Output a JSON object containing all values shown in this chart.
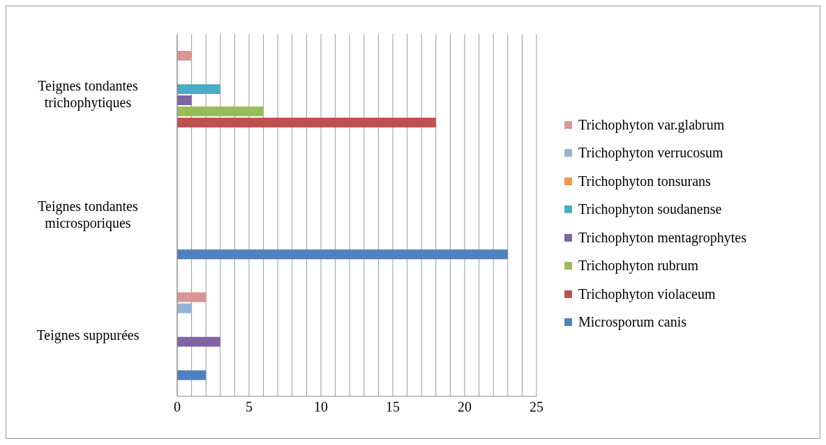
{
  "chart_data": {
    "type": "bar",
    "orientation": "horizontal",
    "categories": [
      "Teignes tondantes trichophytiques",
      "Teignes tondantes microsporiques",
      "Teignes suppurées"
    ],
    "series": [
      {
        "name": "Microsporum canis",
        "color": "#4f81bd",
        "values": [
          0,
          23,
          2
        ]
      },
      {
        "name": "Trichophyton violaceum",
        "color": "#c0504d",
        "values": [
          18,
          0,
          0
        ]
      },
      {
        "name": "Trichophyton rubrum",
        "color": "#9bbb59",
        "values": [
          6,
          0,
          0
        ]
      },
      {
        "name": "Trichophyton mentagrophytes",
        "color": "#8064a2",
        "values": [
          1,
          0,
          3
        ]
      },
      {
        "name": "Trichophyton soudanense",
        "color": "#4bacc6",
        "values": [
          3,
          0,
          0
        ]
      },
      {
        "name": "Trichophyton tonsurans",
        "color": "#f79646",
        "values": [
          0,
          0,
          0
        ]
      },
      {
        "name": "Trichophyton verrucosum",
        "color": "#95b3d7",
        "values": [
          0,
          0,
          1
        ]
      },
      {
        "name": "Trichophyton var.glabrum",
        "color": "#d99694",
        "values": [
          1,
          0,
          2
        ]
      }
    ],
    "xlim": [
      0,
      25
    ],
    "xticks": [
      0,
      {
        "value": 1,
        "label": null
      },
      {
        "value": 2,
        "label": null
      },
      {
        "value": 3,
        "label": null
      },
      {
        "value": 4,
        "label": null
      },
      5,
      {
        "value": 6,
        "label": null
      },
      {
        "value": 7,
        "label": null
      },
      {
        "value": 8,
        "label": null
      },
      {
        "value": 9,
        "label": null
      },
      10,
      {
        "value": 11,
        "label": null
      },
      {
        "value": 12,
        "label": null
      },
      {
        "value": 13,
        "label": null
      },
      {
        "value": 14,
        "label": null
      },
      15,
      {
        "value": 16,
        "label": null
      },
      {
        "value": 17,
        "label": null
      },
      {
        "value": 18,
        "label": null
      },
      {
        "value": 19,
        "label": null
      },
      20,
      {
        "value": 21,
        "label": null
      },
      {
        "value": 22,
        "label": null
      },
      {
        "value": 23,
        "label": null
      },
      {
        "value": 24,
        "label": null
      },
      25
    ],
    "grid": "x",
    "legend": "right"
  }
}
